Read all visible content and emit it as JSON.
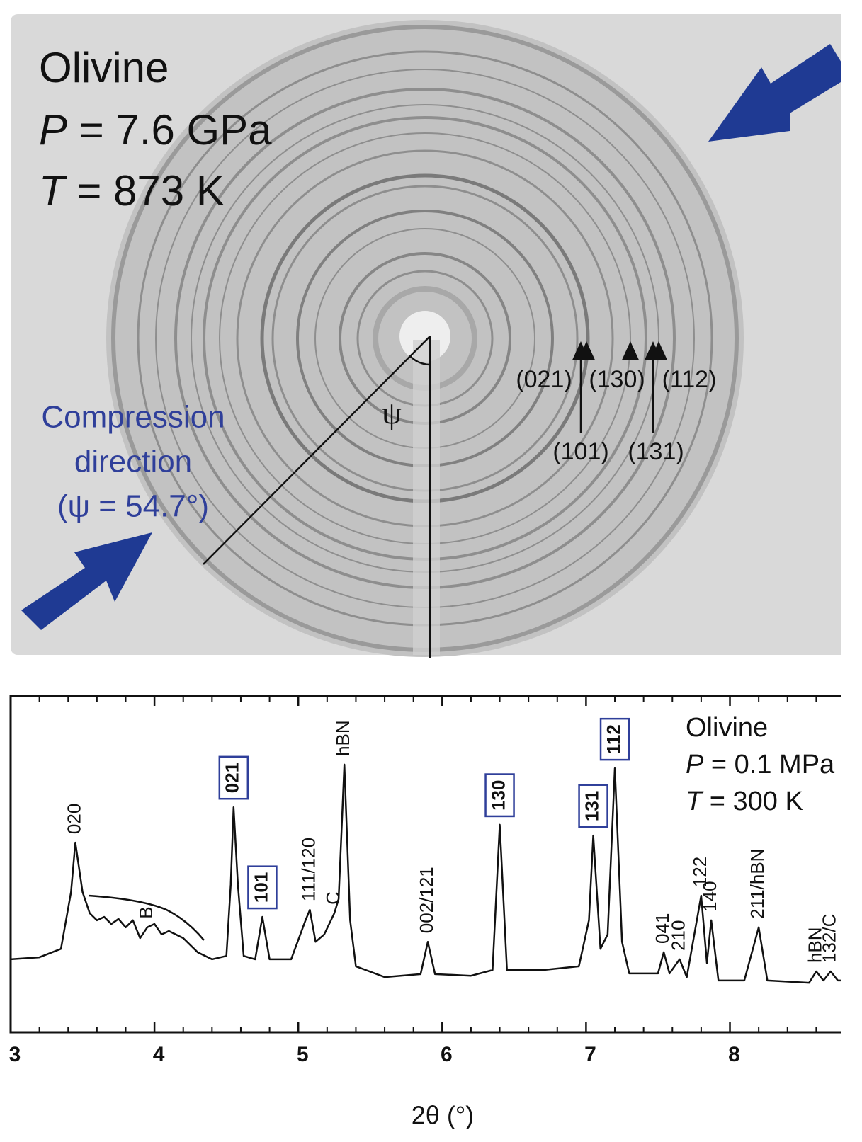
{
  "image": {
    "sample": [
      "Olivine",
      {
        "symbol": "P",
        "text": " = 7.6 GPa"
      },
      {
        "symbol": "T",
        "text": " = 873 K"
      }
    ],
    "compression": [
      "Compression",
      "direction",
      "(ψ = 54.7°)"
    ],
    "angle": "ψ",
    "rings_top": [
      "(021)",
      "(130)",
      "(112)"
    ],
    "rings_bottom": [
      "(101)",
      "(131)"
    ]
  },
  "chart_data": {
    "type": "line",
    "x_label": "2θ (°)",
    "legend": [
      "Olivine",
      {
        "symbol": "P",
        "text": " = 0.1 MPa"
      },
      {
        "symbol": "T",
        "text": " = 300 K"
      }
    ],
    "xlim": [
      3,
      8.8
    ],
    "xticks": [
      3,
      4,
      5,
      6,
      7,
      8
    ],
    "xminorticks": [
      3.2,
      3.4,
      3.6,
      3.8,
      4.2,
      4.4,
      4.6,
      4.8,
      5.2,
      5.4,
      5.6,
      5.8,
      6.2,
      6.4,
      6.6,
      6.8,
      7.2,
      7.4,
      7.6,
      7.8,
      8.2,
      8.4,
      8.6
    ],
    "ylim": [
      0,
      100
    ],
    "color": "#111111",
    "x": [
      3.0,
      3.2,
      3.35,
      3.42,
      3.45,
      3.5,
      3.55,
      3.6,
      3.65,
      3.7,
      3.75,
      3.8,
      3.85,
      3.9,
      3.95,
      4.0,
      4.05,
      4.1,
      4.2,
      4.3,
      4.4,
      4.5,
      4.53,
      4.55,
      4.58,
      4.62,
      4.7,
      4.75,
      4.8,
      4.95,
      5.05,
      5.08,
      5.12,
      5.18,
      5.25,
      5.28,
      5.32,
      5.36,
      5.4,
      5.6,
      5.85,
      5.9,
      5.95,
      6.2,
      6.35,
      6.4,
      6.45,
      6.7,
      6.95,
      7.02,
      7.05,
      7.1,
      7.15,
      7.2,
      7.25,
      7.3,
      7.5,
      7.54,
      7.58,
      7.65,
      7.7,
      7.8,
      7.84,
      7.87,
      7.92,
      8.1,
      8.2,
      8.26,
      8.55,
      8.6,
      8.65,
      8.7,
      8.75,
      8.8
    ],
    "values": [
      21.7,
      22.3,
      24.8,
      41.7,
      56.4,
      41.7,
      35.4,
      33.3,
      34.3,
      32.2,
      33.7,
      31.2,
      33.3,
      28.0,
      31.2,
      32.2,
      29.1,
      30.1,
      28.0,
      23.8,
      21.7,
      22.7,
      43.8,
      66.9,
      43.8,
      22.7,
      21.7,
      34.3,
      21.7,
      21.7,
      33.3,
      36.4,
      26.9,
      29.1,
      35.4,
      39.6,
      79.6,
      33.3,
      19.6,
      16.4,
      17.3,
      26.9,
      17.3,
      16.8,
      18.5,
      61.7,
      18.5,
      18.5,
      19.6,
      33.3,
      58.5,
      24.8,
      29.1,
      78.5,
      26.9,
      17.5,
      17.5,
      23.8,
      17.5,
      21.7,
      16.4,
      40.6,
      20.6,
      33.3,
      15.4,
      15.4,
      31.2,
      15.4,
      14.7,
      18.1,
      15.4,
      18.1,
      15.4,
      15.4
    ],
    "annotations": [
      {
        "text": "020",
        "x": 3.45,
        "boxed": false
      },
      {
        "text": "B",
        "x": 3.95,
        "boxed": false
      },
      {
        "text": "021",
        "x": 4.55,
        "boxed": true
      },
      {
        "text": "101",
        "x": 4.75,
        "boxed": true
      },
      {
        "text": "111/120",
        "x": 5.08,
        "boxed": false
      },
      {
        "text": "C",
        "x": 5.25,
        "boxed": false
      },
      {
        "text": "hBN",
        "x": 5.32,
        "boxed": false
      },
      {
        "text": "002/121",
        "x": 5.9,
        "boxed": false
      },
      {
        "text": "130",
        "x": 6.4,
        "boxed": true
      },
      {
        "text": "131",
        "x": 7.05,
        "boxed": true
      },
      {
        "text": "112",
        "x": 7.2,
        "boxed": true
      },
      {
        "text": "041",
        "x": 7.54,
        "boxed": false
      },
      {
        "text": "210",
        "x": 7.65,
        "boxed": false
      },
      {
        "text": "122",
        "x": 7.8,
        "boxed": false
      },
      {
        "text": "140",
        "x": 7.87,
        "boxed": false
      },
      {
        "text": "211/hBN",
        "x": 8.2,
        "boxed": false
      },
      {
        "text": "hBN",
        "x": 8.6,
        "boxed": false
      },
      {
        "text": "132/C",
        "x": 8.7,
        "boxed": false
      }
    ]
  }
}
